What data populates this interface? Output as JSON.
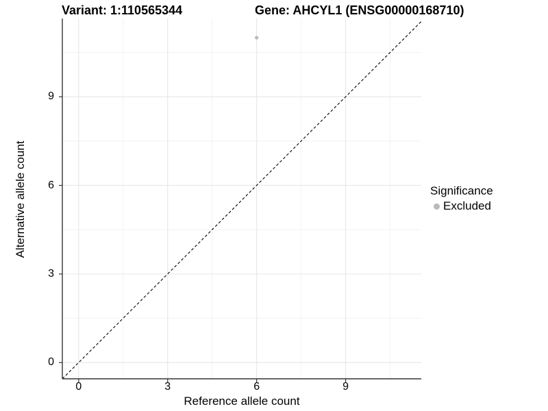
{
  "chart_data": {
    "type": "scatter",
    "titles": {
      "variant": "Variant: 1:110565344",
      "gene": "Gene: AHCYL1 (ENSG00000168710)"
    },
    "xlabel": "Reference allele count",
    "ylabel": "Alternative allele count",
    "xlim": [
      -0.55,
      11.55
    ],
    "ylim": [
      -0.55,
      11.65
    ],
    "x_ticks": [
      0,
      3,
      6,
      9
    ],
    "y_ticks": [
      0,
      3,
      6,
      9
    ],
    "x_minor_ticks": [
      1.5,
      4.5,
      7.5,
      10.5
    ],
    "y_minor_ticks": [
      1.5,
      4.5,
      7.5,
      10.5
    ],
    "grid": "major-and-minor",
    "legend_position": "right",
    "series": [
      {
        "name": "Excluded",
        "color": "#b9b9b9",
        "points": [
          {
            "x": 6,
            "y": 11
          }
        ]
      }
    ],
    "reference_line": {
      "type": "identity",
      "slope": 1,
      "intercept": 0,
      "style": "dashed",
      "color": "#000000"
    },
    "legend": {
      "title": "Significance",
      "items": [
        {
          "label": "Excluded",
          "color": "#b9b9b9"
        }
      ]
    },
    "colors": {
      "grid_major": "#e4e4e4",
      "grid_minor": "#f2f2f2",
      "axis": "#333333",
      "background": "#ffffff"
    }
  }
}
